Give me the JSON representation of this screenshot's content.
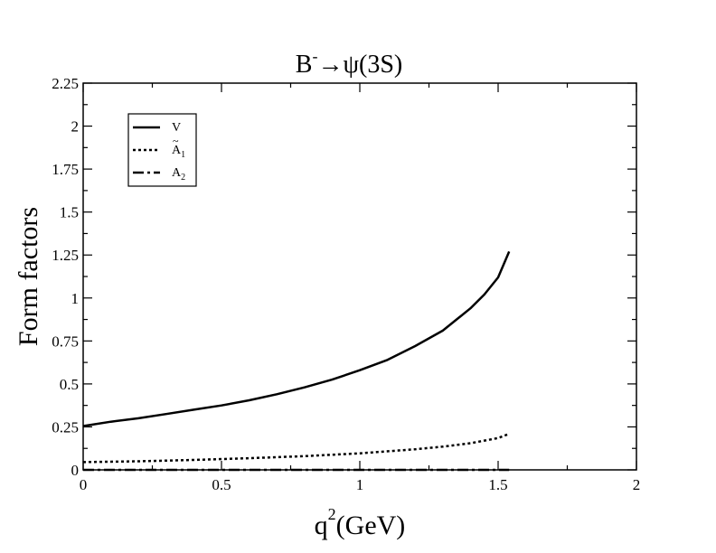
{
  "chart_data": {
    "type": "line",
    "title": {
      "base": "B",
      "sup": "-",
      "rest": "→ψ(3S)"
    },
    "xlabel": {
      "base": "q",
      "sup": "2",
      "rest": "(GeV)"
    },
    "ylabel": "Form factors",
    "xlim": [
      0,
      2
    ],
    "ylim": [
      0,
      2.25
    ],
    "xticks": [
      {
        "value": 0,
        "label": "0"
      },
      {
        "value": 0.5,
        "label": "0.5"
      },
      {
        "value": 1,
        "label": "1"
      },
      {
        "value": 1.5,
        "label": "1.5"
      },
      {
        "value": 2,
        "label": "2"
      }
    ],
    "yticks": [
      {
        "value": 0,
        "label": "0"
      },
      {
        "value": 0.25,
        "label": "0.25"
      },
      {
        "value": 0.5,
        "label": "0.5"
      },
      {
        "value": 0.75,
        "label": "0.75"
      },
      {
        "value": 1,
        "label": "1"
      },
      {
        "value": 1.25,
        "label": "1.25"
      },
      {
        "value": 1.5,
        "label": "1.5"
      },
      {
        "value": 1.75,
        "label": "1.75"
      },
      {
        "value": 2,
        "label": "2"
      },
      {
        "value": 2.25,
        "label": "2.25"
      }
    ],
    "grid": false,
    "legend_position": "top-left",
    "series": [
      {
        "name": "V",
        "legend": {
          "base": "V",
          "accent": "",
          "sub": ""
        },
        "style": "solid",
        "color": "#000000",
        "x": [
          0,
          0.1,
          0.2,
          0.3,
          0.4,
          0.5,
          0.6,
          0.7,
          0.8,
          0.9,
          1.0,
          1.1,
          1.2,
          1.3,
          1.4,
          1.45,
          1.5,
          1.54
        ],
        "y": [
          0.255,
          0.28,
          0.3,
          0.325,
          0.35,
          0.375,
          0.405,
          0.44,
          0.48,
          0.525,
          0.58,
          0.64,
          0.72,
          0.81,
          0.94,
          1.02,
          1.12,
          1.27
        ]
      },
      {
        "name": "Ã1",
        "legend": {
          "base": "A",
          "accent": "~",
          "sub": "1"
        },
        "style": "dotted",
        "color": "#000000",
        "x": [
          0,
          0.2,
          0.4,
          0.6,
          0.8,
          1.0,
          1.2,
          1.3,
          1.4,
          1.5,
          1.54
        ],
        "y": [
          0.045,
          0.05,
          0.058,
          0.068,
          0.08,
          0.096,
          0.12,
          0.135,
          0.155,
          0.185,
          0.21
        ]
      },
      {
        "name": "A2",
        "legend": {
          "base": "A",
          "accent": "",
          "sub": "2"
        },
        "style": "dashdot",
        "color": "#000000",
        "x": [
          0,
          0.5,
          1.0,
          1.54
        ],
        "y": [
          0,
          0,
          0,
          0
        ]
      }
    ]
  }
}
